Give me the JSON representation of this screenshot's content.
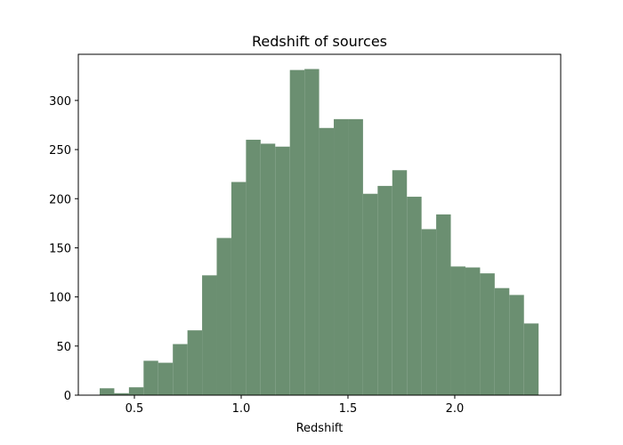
{
  "chart_data": {
    "type": "histogram",
    "title": "Redshift of sources",
    "xlabel": "Redshift",
    "bins": [
      0.3375,
      0.406,
      0.4745,
      0.543,
      0.6115,
      0.68,
      0.7485,
      0.817,
      0.8855,
      0.954,
      1.0225,
      1.091,
      1.1595,
      1.228,
      1.2965,
      1.365,
      1.4335,
      1.502,
      1.5705,
      1.639,
      1.7075,
      1.776,
      1.8445,
      1.913,
      1.9815,
      2.05,
      2.1185,
      2.187,
      2.2555,
      2.324,
      2.3925
    ],
    "values": [
      7,
      2,
      8,
      35,
      33,
      52,
      66,
      122,
      160,
      217,
      260,
      256,
      253,
      331,
      332,
      272,
      281,
      281,
      205,
      213,
      229,
      202,
      169,
      184,
      131,
      130,
      124,
      109,
      102,
      73
    ],
    "color": "#6b8f71",
    "xlim": [
      0.2375,
      2.496
    ],
    "xticks": [
      0.5,
      {
        "value": 1,
        "label": "1.0"
      },
      1.5,
      {
        "value": 2,
        "label": "2.0"
      }
    ],
    "ylim": [
      0,
      347
    ],
    "yticks": [
      0,
      50,
      100,
      150,
      200,
      250,
      300
    ],
    "grid": false
  }
}
